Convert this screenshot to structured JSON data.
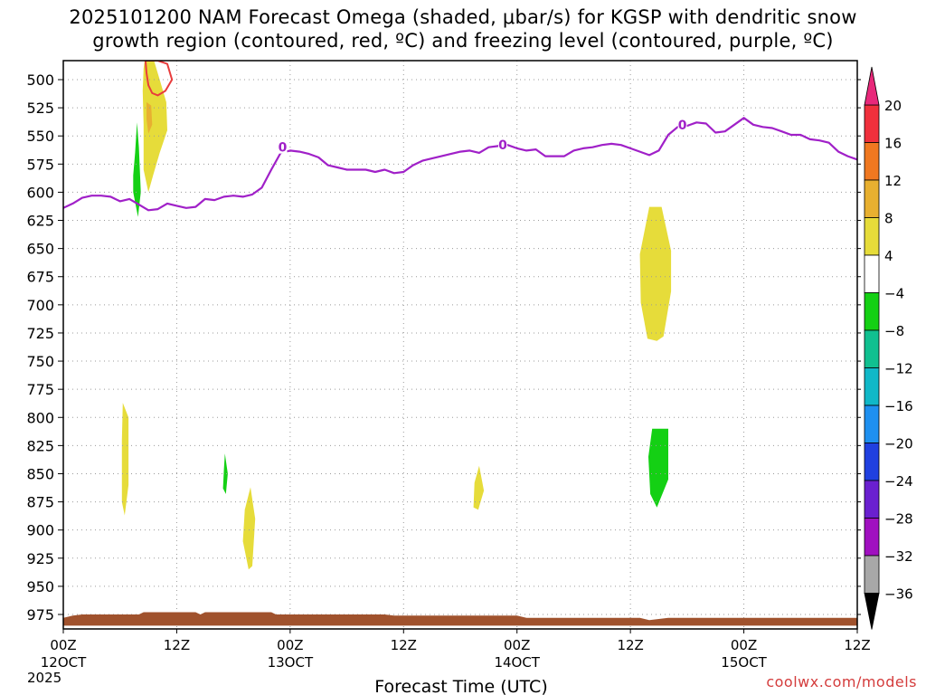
{
  "title_line1": "2025101200 NAM Forecast Omega (shaded, μbar/s) for KGSP with dendritic snow",
  "title_line2": "growth region (contoured, red, ºC) and freezing level (contoured, purple, ºC)",
  "credit": "coolwx.com/models",
  "colors": {
    "freezing_level": "#a020c8",
    "dgz": "#e83c3c",
    "terrain": "#a0522d",
    "grid": "#9a9a9a"
  },
  "chart_data": {
    "type": "heatmap",
    "xlabel": "Forecast Time (UTC)",
    "ylabel": "",
    "year_label": "2025",
    "xlim": [
      0,
      84
    ],
    "ylim": [
      490,
      985
    ],
    "x_ticks": [
      {
        "hour": 0,
        "label1": "00Z",
        "label2": "12OCT"
      },
      {
        "hour": 12,
        "label1": "12Z",
        "label2": ""
      },
      {
        "hour": 24,
        "label1": "00Z",
        "label2": "13OCT"
      },
      {
        "hour": 36,
        "label1": "12Z",
        "label2": ""
      },
      {
        "hour": 48,
        "label1": "00Z",
        "label2": "14OCT"
      },
      {
        "hour": 60,
        "label1": "12Z",
        "label2": ""
      },
      {
        "hour": 72,
        "label1": "00Z",
        "label2": "15OCT"
      },
      {
        "hour": 84,
        "label1": "12Z",
        "label2": ""
      }
    ],
    "y_ticks": [
      500,
      525,
      550,
      575,
      600,
      625,
      650,
      675,
      700,
      725,
      750,
      775,
      800,
      825,
      850,
      875,
      900,
      925,
      950,
      975
    ],
    "colorbar": {
      "label_values": [
        "20",
        "16",
        "12",
        "8",
        "4",
        "-4",
        "-8",
        "-12",
        "-16",
        "-20",
        "-24",
        "-28",
        "-32",
        "-36"
      ],
      "bands": [
        {
          "range": "16 to 20",
          "color": "#f0303c"
        },
        {
          "range": "12 to 16",
          "color": "#f07820"
        },
        {
          "range": "8 to 12",
          "color": "#e8b030"
        },
        {
          "range": "4 to 8",
          "color": "#e6dc3a"
        },
        {
          "range": "-4 to 4",
          "color": "#ffffff"
        },
        {
          "range": "-8 to -4",
          "color": "#14d014"
        },
        {
          "range": "-12 to -8",
          "color": "#10c090"
        },
        {
          "range": "-16 to -12",
          "color": "#10b8c8"
        },
        {
          "range": "-20 to -16",
          "color": "#1e90f0"
        },
        {
          "range": "-24 to -20",
          "color": "#2040e0"
        },
        {
          "range": "-28 to -24",
          "color": "#6a20d0"
        },
        {
          "range": "-32 to -28",
          "color": "#a010c0"
        },
        {
          "range": "-36 to -32",
          "color": "#a8a8a8"
        }
      ],
      "top_arrow_color": "#e8287a",
      "bottom_arrow_color": "#000000"
    },
    "freezing_level": {
      "contour_label": "0",
      "label_points": [
        [
          23.2,
          560
        ],
        [
          46.5,
          558
        ],
        [
          65.5,
          540
        ]
      ],
      "points": [
        [
          0,
          614
        ],
        [
          1,
          610
        ],
        [
          2,
          605
        ],
        [
          3,
          603
        ],
        [
          4,
          603
        ],
        [
          5,
          604
        ],
        [
          6,
          608
        ],
        [
          7,
          606
        ],
        [
          8,
          611
        ],
        [
          9,
          616
        ],
        [
          10,
          615
        ],
        [
          11,
          610
        ],
        [
          12,
          612
        ],
        [
          13,
          614
        ],
        [
          14,
          613
        ],
        [
          15,
          606
        ],
        [
          16,
          607
        ],
        [
          17,
          604
        ],
        [
          18,
          603
        ],
        [
          19,
          604
        ],
        [
          20,
          602
        ],
        [
          21,
          596
        ],
        [
          22,
          580
        ],
        [
          23,
          565
        ],
        [
          24,
          563
        ],
        [
          25,
          564
        ],
        [
          26,
          566
        ],
        [
          27,
          569
        ],
        [
          28,
          576
        ],
        [
          29,
          578
        ],
        [
          30,
          580
        ],
        [
          31,
          580
        ],
        [
          32,
          580
        ],
        [
          33,
          582
        ],
        [
          34,
          580
        ],
        [
          35,
          583
        ],
        [
          36,
          582
        ],
        [
          37,
          576
        ],
        [
          38,
          572
        ],
        [
          39,
          570
        ],
        [
          40,
          568
        ],
        [
          41,
          566
        ],
        [
          42,
          564
        ],
        [
          43,
          563
        ],
        [
          44,
          565
        ],
        [
          45,
          560
        ],
        [
          46,
          559
        ],
        [
          47,
          558
        ],
        [
          48,
          561
        ],
        [
          49,
          563
        ],
        [
          50,
          562
        ],
        [
          51,
          568
        ],
        [
          52,
          568
        ],
        [
          53,
          568
        ],
        [
          54,
          563
        ],
        [
          55,
          561
        ],
        [
          56,
          560
        ],
        [
          57,
          558
        ],
        [
          58,
          557
        ],
        [
          59,
          558
        ],
        [
          60,
          561
        ],
        [
          61,
          564
        ],
        [
          62,
          567
        ],
        [
          63,
          563
        ],
        [
          64,
          549
        ],
        [
          65,
          542
        ],
        [
          66,
          541
        ],
        [
          67,
          538
        ],
        [
          68,
          539
        ],
        [
          69,
          547
        ],
        [
          70,
          546
        ],
        [
          71,
          540
        ],
        [
          72,
          534
        ],
        [
          73,
          540
        ],
        [
          74,
          542
        ],
        [
          75,
          543
        ],
        [
          76,
          546
        ],
        [
          77,
          549
        ],
        [
          78,
          549
        ],
        [
          79,
          553
        ],
        [
          80,
          554
        ],
        [
          81,
          556
        ],
        [
          82,
          564
        ],
        [
          83,
          568
        ],
        [
          84,
          571
        ]
      ]
    },
    "dgz_contour": {
      "points": [
        [
          8.7,
          480
        ],
        [
          10,
          480
        ],
        [
          11,
          486
        ],
        [
          11.5,
          500
        ],
        [
          10.8,
          510
        ],
        [
          10,
          514
        ],
        [
          9.4,
          512
        ],
        [
          9.0,
          505
        ],
        [
          8.8,
          494
        ],
        [
          8.7,
          480
        ]
      ]
    },
    "omega_regions": [
      {
        "color": "#e6dc3a",
        "points": [
          [
            8.6,
            480
          ],
          [
            9.6,
            483
          ],
          [
            10.2,
            500
          ],
          [
            10.9,
            520
          ],
          [
            11.0,
            545
          ],
          [
            10.2,
            565
          ],
          [
            9.5,
            585
          ],
          [
            9.0,
            600
          ],
          [
            8.5,
            580
          ],
          [
            8.5,
            540
          ],
          [
            8.4,
            510
          ],
          [
            8.5,
            490
          ]
        ]
      },
      {
        "color": "#e8b030",
        "points": [
          [
            8.8,
            520
          ],
          [
            9.3,
            523
          ],
          [
            9.4,
            540
          ],
          [
            9.0,
            548
          ],
          [
            8.8,
            535
          ]
        ]
      },
      {
        "color": "#14d014",
        "points": [
          [
            7.8,
            538
          ],
          [
            8.0,
            560
          ],
          [
            8.2,
            600
          ],
          [
            7.9,
            622
          ],
          [
            7.4,
            600
          ],
          [
            7.4,
            585
          ],
          [
            7.6,
            565
          ]
        ]
      },
      {
        "color": "#e6dc3a",
        "points": [
          [
            6.3,
            787
          ],
          [
            6.9,
            800
          ],
          [
            6.9,
            860
          ],
          [
            6.5,
            887
          ],
          [
            6.2,
            875
          ],
          [
            6.2,
            820
          ]
        ]
      },
      {
        "color": "#14d014",
        "points": [
          [
            17.1,
            832
          ],
          [
            17.4,
            850
          ],
          [
            17.2,
            868
          ],
          [
            16.9,
            863
          ],
          [
            17.0,
            845
          ]
        ]
      },
      {
        "color": "#e6dc3a",
        "points": [
          [
            19.8,
            862
          ],
          [
            20.3,
            890
          ],
          [
            20.0,
            932
          ],
          [
            19.6,
            935
          ],
          [
            19.0,
            910
          ],
          [
            19.2,
            882
          ]
        ]
      },
      {
        "color": "#e6dc3a",
        "points": [
          [
            44.0,
            843
          ],
          [
            44.5,
            865
          ],
          [
            43.9,
            882
          ],
          [
            43.4,
            880
          ],
          [
            43.5,
            858
          ]
        ]
      },
      {
        "color": "#e6dc3a",
        "points": [
          [
            62.0,
            613
          ],
          [
            63.3,
            613
          ],
          [
            64.3,
            652
          ],
          [
            64.3,
            688
          ],
          [
            63.5,
            728
          ],
          [
            62.8,
            732
          ],
          [
            61.8,
            730
          ],
          [
            61.1,
            698
          ],
          [
            61.0,
            655
          ]
        ]
      },
      {
        "color": "#14d014",
        "points": [
          [
            62.3,
            810
          ],
          [
            64.0,
            810
          ],
          [
            64.0,
            855
          ],
          [
            62.8,
            880
          ],
          [
            62.1,
            868
          ],
          [
            61.9,
            835
          ]
        ]
      }
    ],
    "terrain": {
      "color": "#a0522d",
      "top_points": [
        [
          0,
          978
        ],
        [
          1,
          976
        ],
        [
          2,
          975
        ],
        [
          8,
          975
        ],
        [
          8.5,
          973
        ],
        [
          14,
          973
        ],
        [
          14.5,
          975
        ],
        [
          15,
          973
        ],
        [
          22,
          973
        ],
        [
          22.5,
          975
        ],
        [
          34,
          975
        ],
        [
          35,
          976
        ],
        [
          48,
          976
        ],
        [
          49,
          978
        ],
        [
          61,
          978
        ],
        [
          62,
          980
        ],
        [
          63,
          979
        ],
        [
          64,
          978
        ],
        [
          84,
          978
        ]
      ],
      "bottom_pressure": 985
    }
  }
}
